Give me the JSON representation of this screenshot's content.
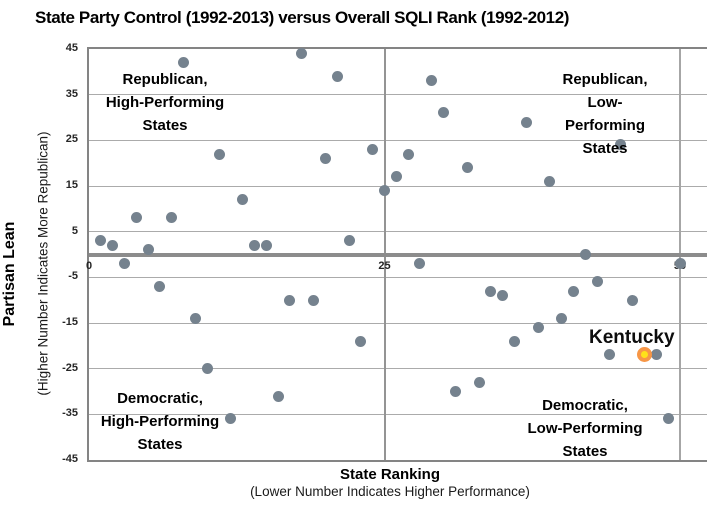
{
  "chart_data": {
    "type": "scatter",
    "title": "State Party Control (1992-2013) versus Overall SQLI Rank (1992-2012)",
    "xlabel": "State Ranking",
    "xlabel_sub": "(Lower Number Indicates Higher Performance)",
    "ylabel": "Partisan Lean",
    "ylabel_sub": "(Higher Number Indicates More Republican)",
    "xlim": [
      0,
      52.3
    ],
    "ylim": [
      -45,
      45
    ],
    "x_ticks": [
      0,
      25,
      50
    ],
    "y_ticks": [
      45,
      35,
      25,
      15,
      5,
      -5,
      -15,
      -25,
      -35,
      -45
    ],
    "grid": true,
    "zero_line_y": 0,
    "quadrant_divider_x": 25,
    "legend_position": "none",
    "series": [
      {
        "name": "States",
        "marker_color": "#75828E",
        "points": [
          [
            1,
            3
          ],
          [
            2,
            2
          ],
          [
            3,
            -2
          ],
          [
            4,
            8
          ],
          [
            5,
            1
          ],
          [
            6,
            -7
          ],
          [
            7,
            8
          ],
          [
            8,
            42
          ],
          [
            9,
            -14
          ],
          [
            10,
            -25
          ],
          [
            11,
            22
          ],
          [
            12,
            -36
          ],
          [
            13,
            12
          ],
          [
            14,
            2
          ],
          [
            15,
            2
          ],
          [
            16,
            -31
          ],
          [
            17,
            -10
          ],
          [
            18,
            44
          ],
          [
            19,
            -10
          ],
          [
            20,
            21
          ],
          [
            21,
            39
          ],
          [
            22,
            3
          ],
          [
            23,
            -19
          ],
          [
            24,
            23
          ],
          [
            25,
            14
          ],
          [
            26,
            17
          ],
          [
            27,
            22
          ],
          [
            28,
            -2
          ],
          [
            29,
            38
          ],
          [
            30,
            31
          ],
          [
            31,
            -30
          ],
          [
            32,
            19
          ],
          [
            33,
            -28
          ],
          [
            34,
            -8
          ],
          [
            35,
            -9
          ],
          [
            36,
            -19
          ],
          [
            37,
            29
          ],
          [
            38,
            -16
          ],
          [
            39,
            16
          ],
          [
            40,
            -14
          ],
          [
            41,
            -8
          ],
          [
            42,
            0
          ],
          [
            43,
            -6
          ],
          [
            44,
            -22
          ],
          [
            45,
            24
          ],
          [
            46,
            -10
          ],
          [
            48,
            -22
          ],
          [
            49,
            -36
          ],
          [
            50,
            -2
          ]
        ]
      },
      {
        "name": "Kentucky",
        "marker_color": "#F79646",
        "marker_center_color": "#FFE11A",
        "points": [
          [
            47,
            -22
          ]
        ]
      }
    ],
    "annotations": {
      "kentucky_label": "Kentucky"
    },
    "quadrant_labels": {
      "top_left": "Republican,\nHigh-Performing\nStates",
      "top_right": "Republican,\nLow-Performing\nStates",
      "bottom_left": "Democratic,\nHigh-Performing\nStates",
      "bottom_right": "Democratic,\nLow-Performing\nStates"
    },
    "colors": {
      "gridline": "#ABABAB",
      "axis_border": "#848484",
      "zero_line": "#8C8C8C",
      "point": "#75828E",
      "kentucky_ring": "#F79646",
      "kentucky_center": "#FFE11A"
    }
  }
}
